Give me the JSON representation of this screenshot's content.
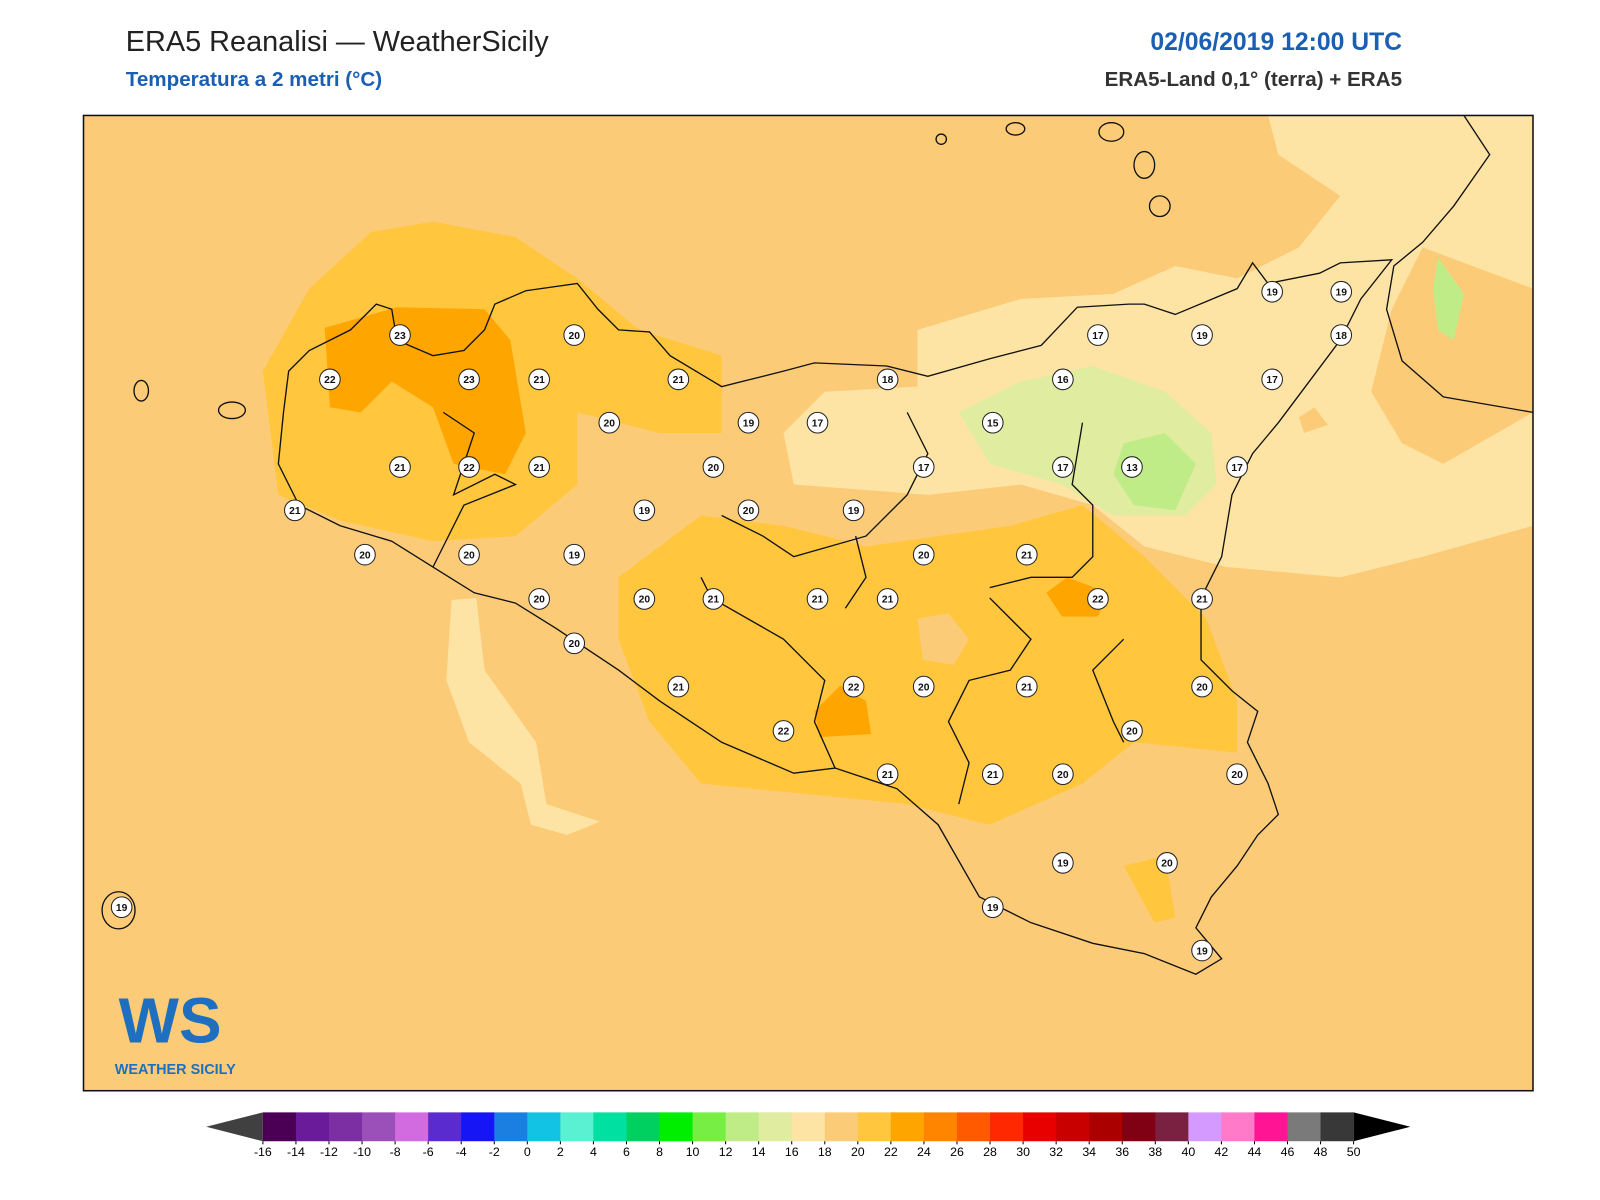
{
  "header": {
    "title": "ERA5 Reanalisi — WeatherSicily",
    "subtitle": "Temperatura a 2 metri (°C)",
    "datetime": "02/06/2019 12:00 UTC",
    "source": "ERA5-Land 0,1° (terra) + ERA5"
  },
  "stations": [
    23,
    20,
    22,
    23,
    21,
    21,
    18,
    17,
    19,
    19,
    19,
    18,
    16,
    17,
    20,
    19,
    17,
    15,
    21,
    22,
    21,
    20,
    17,
    17,
    13,
    17,
    21,
    19,
    20,
    19,
    20,
    20,
    19,
    20,
    21,
    20,
    20,
    21,
    21,
    21,
    22,
    21,
    20,
    21,
    22,
    20,
    21,
    20,
    22,
    20,
    21,
    21,
    20,
    20,
    19,
    20,
    19,
    19,
    19
  ],
  "colorbar": {
    "ticks": [
      -16,
      -14,
      -12,
      -10,
      -8,
      -6,
      -4,
      -2,
      0,
      2,
      4,
      6,
      8,
      10,
      12,
      14,
      16,
      18,
      20,
      22,
      24,
      26,
      28,
      30,
      32,
      34,
      36,
      38,
      40,
      42,
      44,
      46,
      48,
      50
    ],
    "colors": [
      "#4b0055",
      "#6a1b9a",
      "#7b2fa3",
      "#9b4fb8",
      "#d36be0",
      "#5a2ccf",
      "#1515f5",
      "#1a7fe0",
      "#12c3e3",
      "#5af0d2",
      "#00e0a0",
      "#00d060",
      "#00ee00",
      "#77ee44",
      "#c0ec88",
      "#e0eca0",
      "#fde4a4",
      "#fccb78",
      "#ffc63e",
      "#ffa500",
      "#ff8400",
      "#ff5a00",
      "#ff2800",
      "#e80000",
      "#c80000",
      "#aa0000",
      "#800014",
      "#7a2040",
      "#d49aff",
      "#ff7ac8",
      "#ff1493",
      "#7a7a7a",
      "#383838"
    ],
    "under_color": "#404040",
    "over_color": "#000000"
  },
  "logo": {
    "mark": "WS",
    "text": "WEATHER SICILY"
  }
}
